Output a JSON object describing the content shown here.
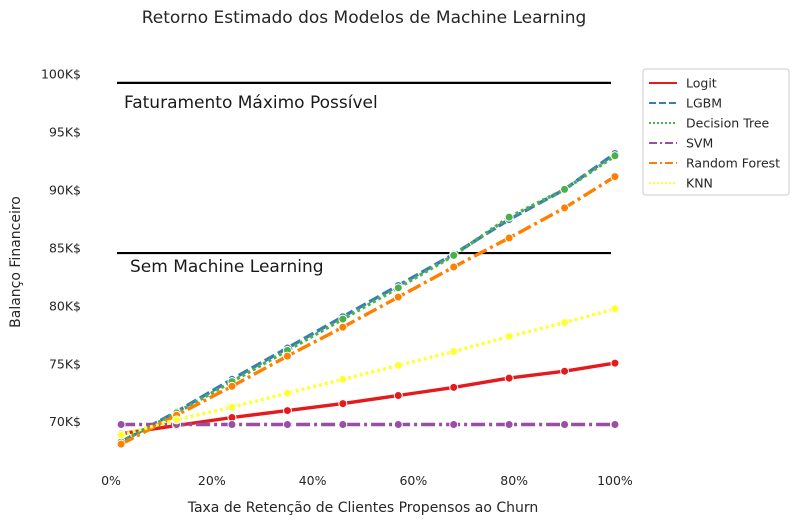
{
  "chart_data": {
    "type": "line",
    "title": "Retorno Estimado dos Modelos de Machine Learning",
    "xlabel": "Taxa de Retenção de Clientes Propensos ao Churn",
    "ylabel": "Balanço Financeiro",
    "xlim": [
      -1,
      101
    ],
    "ylim": [
      66.3,
      103.0
    ],
    "xticks": [
      0,
      20,
      40,
      60,
      80,
      100
    ],
    "xtick_labels": [
      "0%",
      "20%",
      "40%",
      "60%",
      "80%",
      "100%"
    ],
    "yticks": [
      70,
      75,
      80,
      85,
      90,
      95,
      100
    ],
    "ytick_labels": [
      "70K$",
      "75K$",
      "80K$",
      "85K$",
      "90K$",
      "95K$",
      "100K$"
    ],
    "grid": false,
    "legend_position": "outside upper right",
    "reference_lines": [
      {
        "y": 99.3,
        "label": "Faturamento Máximo Possível",
        "color": "#000000"
      },
      {
        "y": 84.6,
        "label": "Sem Machine Learning",
        "color": "#000000"
      }
    ],
    "x": [
      2,
      13,
      24,
      35,
      46,
      57,
      68,
      79,
      90,
      100
    ],
    "series": [
      {
        "name": "Logit",
        "color": "#e41a1c",
        "dash": "solid",
        "values": [
          69.0,
          69.7,
          70.4,
          71.0,
          71.6,
          72.3,
          73.0,
          73.8,
          74.4,
          75.1
        ]
      },
      {
        "name": "LGBM",
        "color": "#377eb8",
        "dash": "dashed",
        "values": [
          68.3,
          70.9,
          73.7,
          76.4,
          79.1,
          81.8,
          84.5,
          87.5,
          90.1,
          93.2
        ]
      },
      {
        "name": "Decision Tree",
        "color": "#4daf4a",
        "dash": "dotted",
        "values": [
          68.3,
          70.8,
          73.5,
          76.2,
          78.9,
          81.6,
          84.4,
          87.7,
          90.1,
          93.0
        ]
      },
      {
        "name": "SVM",
        "color": "#984ea3",
        "dash": "dashdot",
        "values": [
          69.8,
          69.8,
          69.8,
          69.8,
          69.8,
          69.8,
          69.8,
          69.8,
          69.8,
          69.8
        ]
      },
      {
        "name": "Random Forest",
        "color": "#ff7f00",
        "dash": "dashdot",
        "values": [
          68.1,
          70.6,
          73.1,
          75.7,
          78.2,
          80.8,
          83.4,
          85.9,
          88.5,
          91.2
        ]
      },
      {
        "name": "KNN",
        "color": "#ffff33",
        "dash": "dotted",
        "values": [
          68.9,
          70.2,
          71.3,
          72.5,
          73.7,
          74.9,
          76.1,
          77.4,
          78.6,
          79.8
        ]
      }
    ]
  }
}
